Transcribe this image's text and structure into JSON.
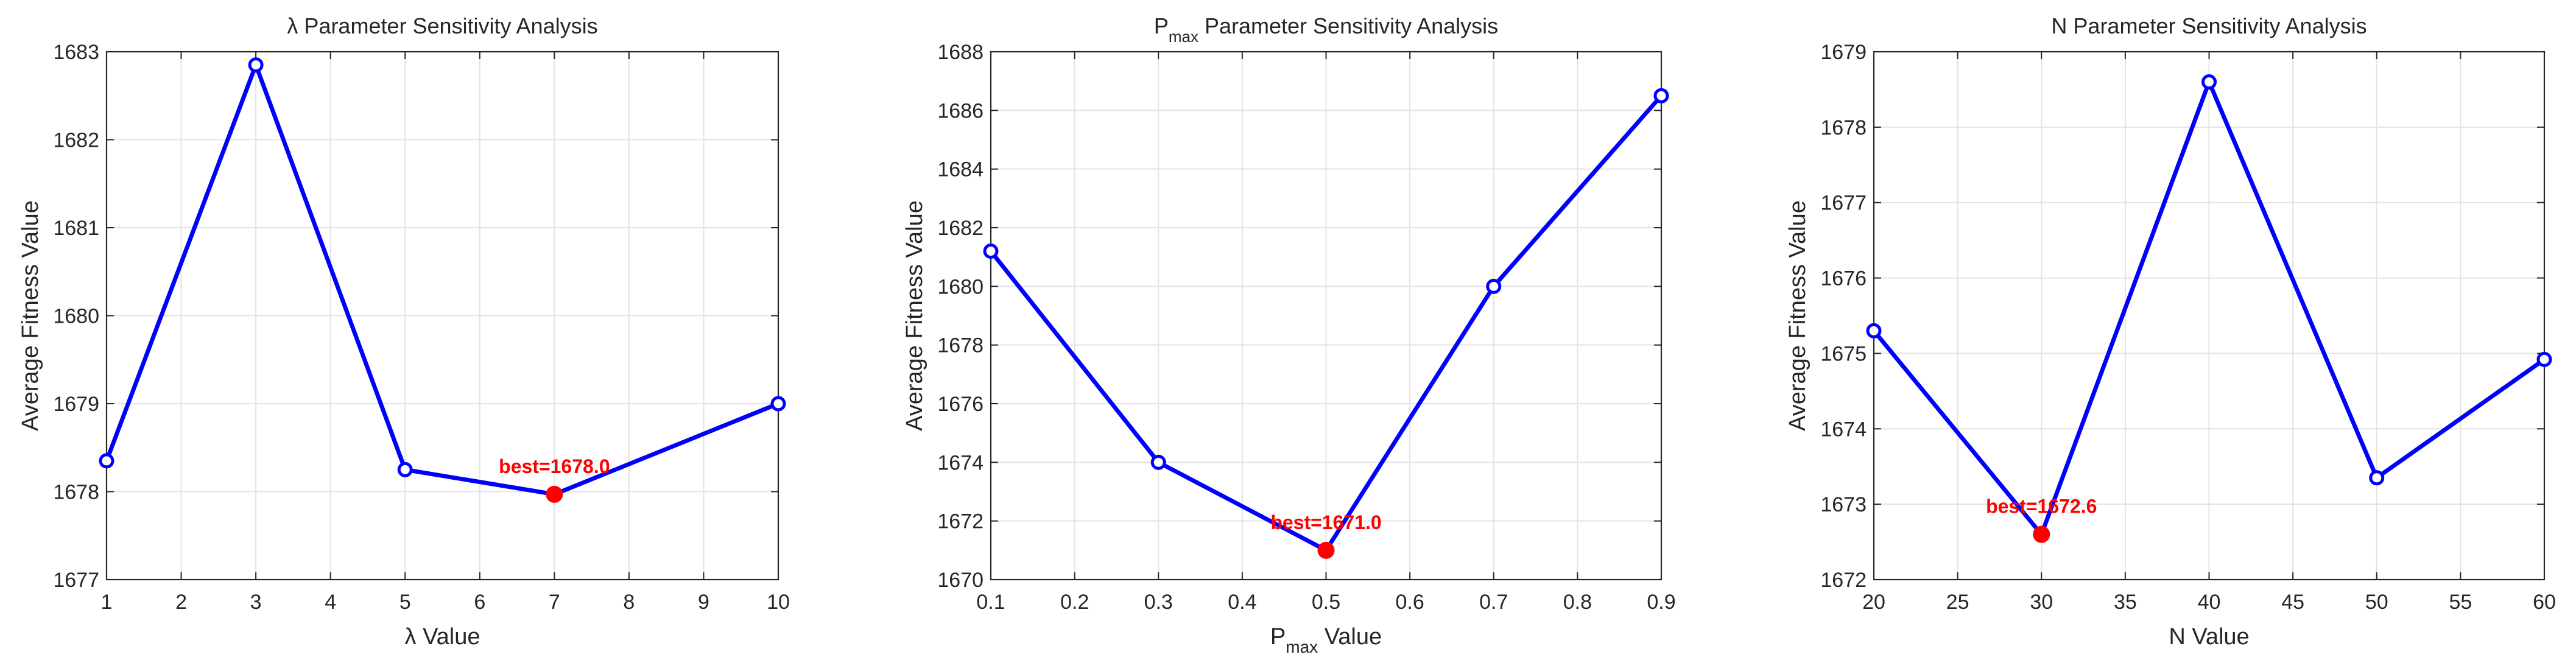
{
  "chart_data": [
    {
      "type": "line",
      "title": "λ Parameter Sensitivity Analysis",
      "xlabel": "λ Value",
      "ylabel": "Average Fitness Value",
      "x": [
        1,
        3,
        5,
        7,
        10
      ],
      "series": [
        {
          "values": [
            1678.35,
            1682.85,
            1678.25,
            1677.97,
            1679.0
          ]
        }
      ],
      "xlim": [
        1,
        10
      ],
      "ylim": [
        1677,
        1683
      ],
      "xticks": [
        1,
        2,
        3,
        4,
        5,
        6,
        7,
        8,
        9,
        10
      ],
      "yticks": [
        1677,
        1678,
        1679,
        1680,
        1681,
        1682,
        1683
      ],
      "best": {
        "x": 7,
        "y": 1677.97,
        "label": "best=1678.0"
      },
      "grid": true,
      "line_color": "#0000ff",
      "best_color": "#ff0000"
    },
    {
      "type": "line",
      "title": "P_max Parameter Sensitivity Analysis",
      "title_parts": {
        "main": "P",
        "sub": "max",
        "rest": " Parameter Sensitivity Analysis"
      },
      "xlabel": "P_max Value",
      "xlabel_parts": {
        "main": "P",
        "sub": "max",
        "rest": " Value"
      },
      "ylabel": "Average Fitness Value",
      "x": [
        0.1,
        0.3,
        0.5,
        0.7,
        0.9
      ],
      "series": [
        {
          "values": [
            1681.2,
            1674.0,
            1671.0,
            1680.0,
            1686.5
          ]
        }
      ],
      "xlim": [
        0.1,
        0.9
      ],
      "ylim": [
        1670,
        1688
      ],
      "xticks": [
        0.1,
        0.2,
        0.3,
        0.4,
        0.5,
        0.6,
        0.7,
        0.8,
        0.9
      ],
      "yticks": [
        1670,
        1672,
        1674,
        1676,
        1678,
        1680,
        1682,
        1684,
        1686,
        1688
      ],
      "best": {
        "x": 0.5,
        "y": 1671.0,
        "label": "best=1671.0"
      },
      "grid": true,
      "line_color": "#0000ff",
      "best_color": "#ff0000"
    },
    {
      "type": "line",
      "title": "N Parameter Sensitivity Analysis",
      "xlabel": "N Value",
      "ylabel": "Average Fitness Value",
      "x": [
        20,
        30,
        40,
        50,
        60
      ],
      "series": [
        {
          "values": [
            1675.3,
            1672.6,
            1678.6,
            1673.35,
            1674.92
          ]
        }
      ],
      "xlim": [
        20,
        60
      ],
      "ylim": [
        1672,
        1679
      ],
      "xticks": [
        20,
        25,
        30,
        35,
        40,
        45,
        50,
        55,
        60
      ],
      "yticks": [
        1672,
        1673,
        1674,
        1675,
        1676,
        1677,
        1678,
        1679
      ],
      "best": {
        "x": 30,
        "y": 1672.6,
        "label": "best=1672.6"
      },
      "grid": true,
      "line_color": "#0000ff",
      "best_color": "#ff0000"
    }
  ]
}
